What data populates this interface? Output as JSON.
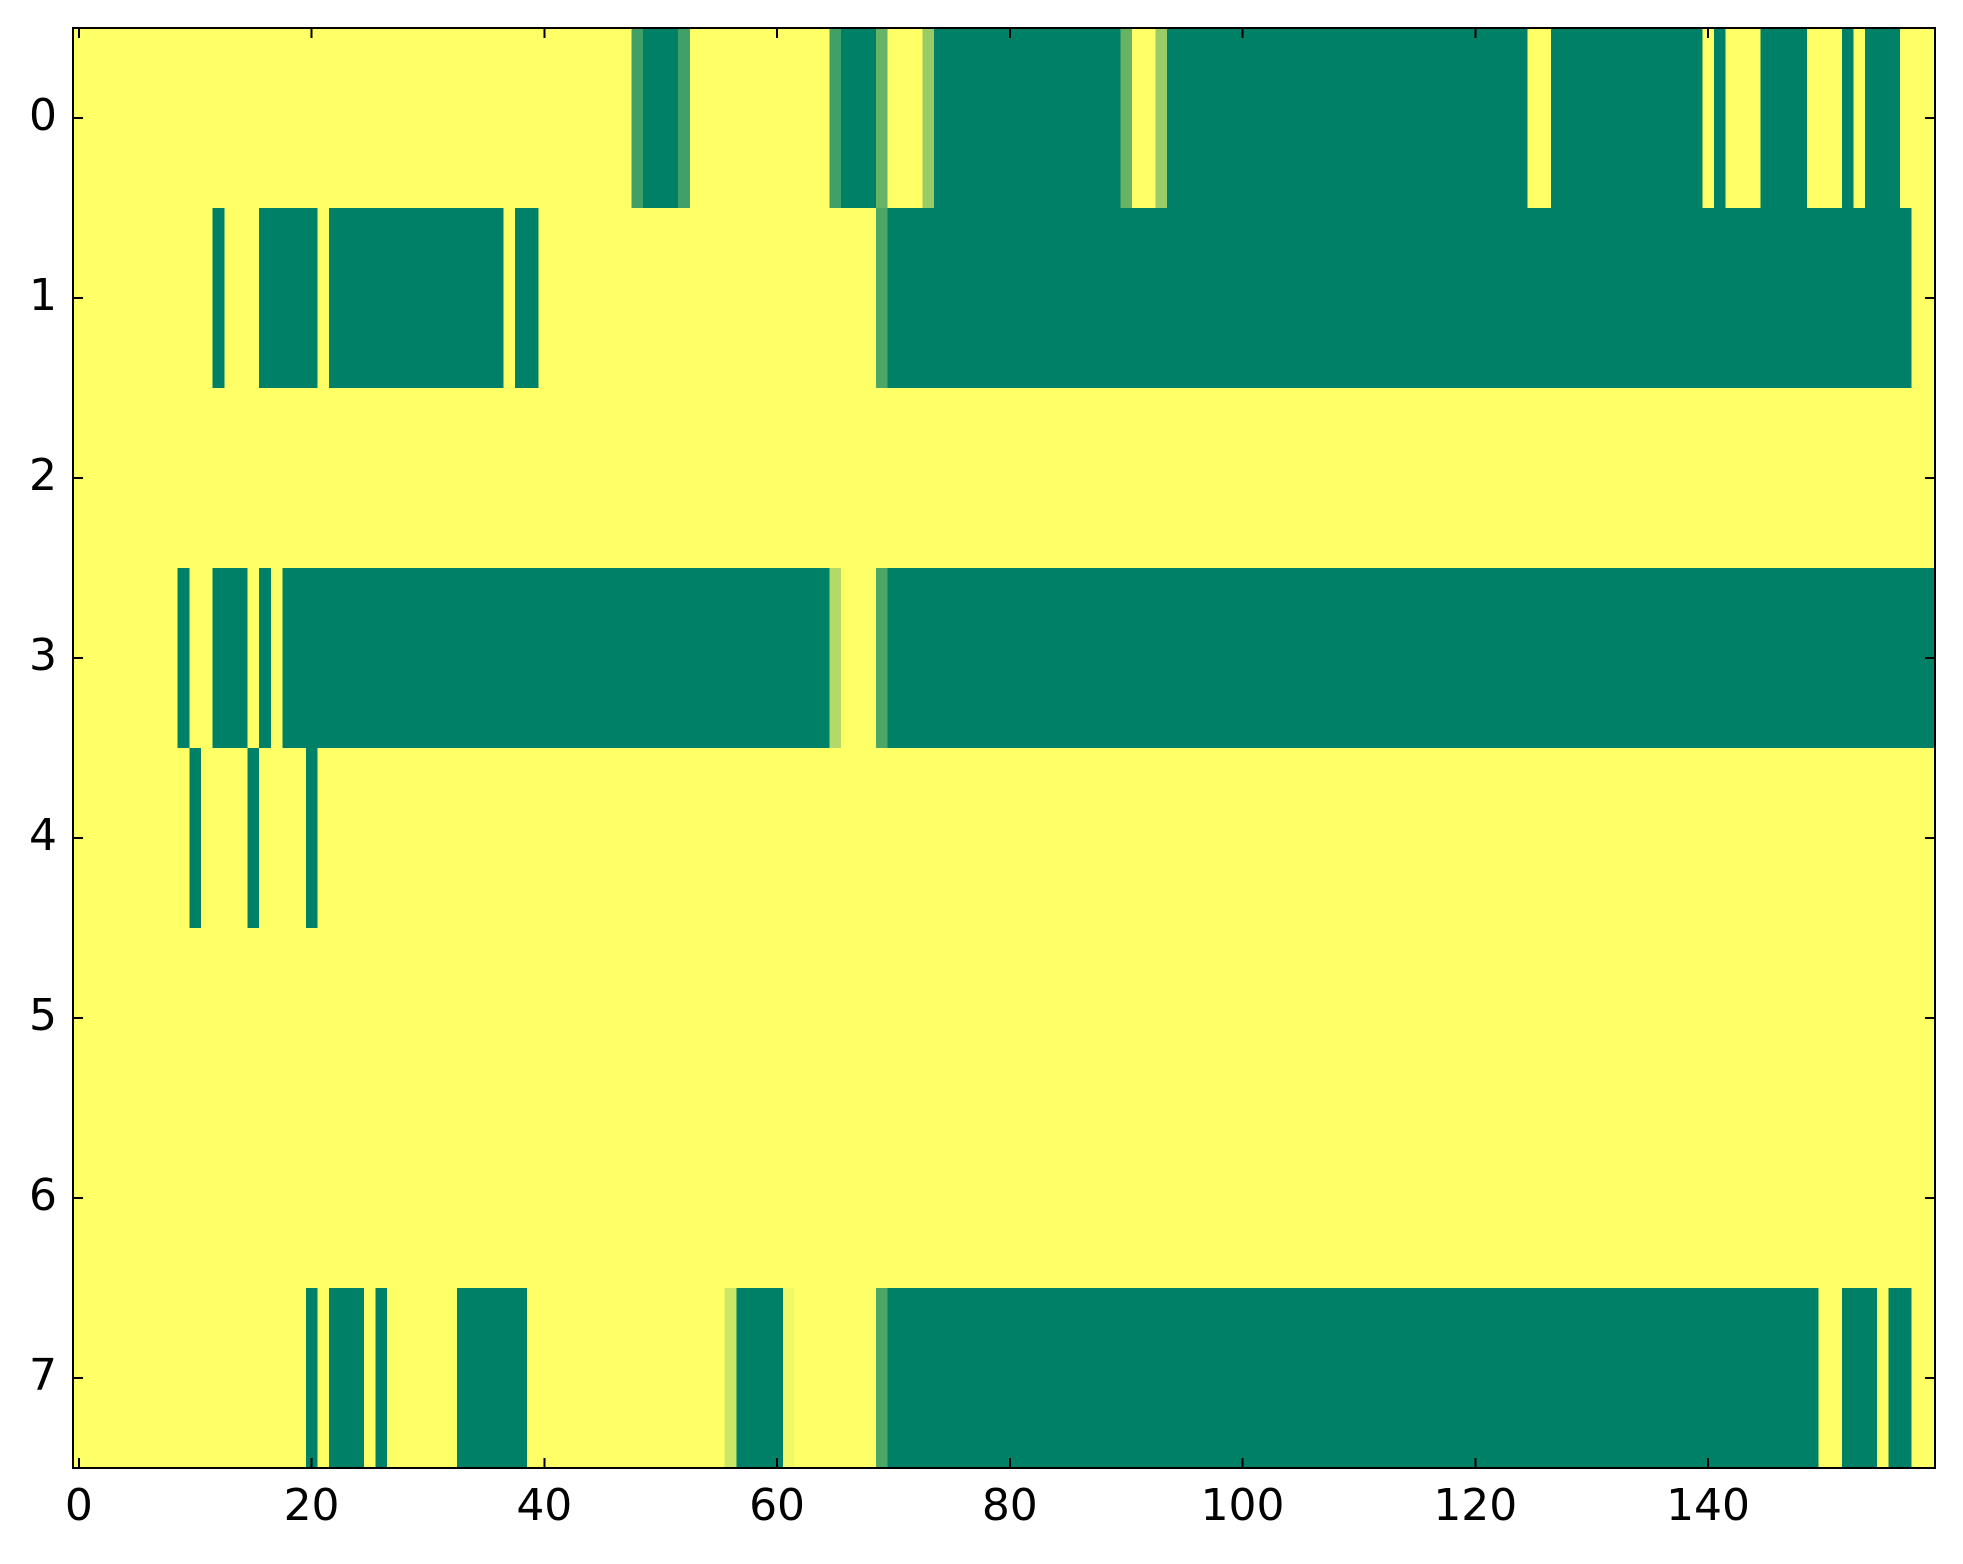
{
  "chart_data": {
    "type": "heatmap",
    "colors": [
      "#ffff66",
      "#008066"
    ],
    "xlim": [
      -0.5,
      159.5
    ],
    "ylim": [
      7.5,
      -0.5
    ],
    "xticks": [
      0,
      20,
      40,
      60,
      80,
      100,
      120,
      140
    ],
    "yticks": [
      0,
      1,
      2,
      3,
      4,
      5,
      6,
      7
    ],
    "z": [
      [
        0,
        0,
        0,
        0,
        0,
        0,
        0,
        0,
        0,
        0,
        0,
        0,
        0,
        0,
        0,
        0,
        0,
        0,
        0,
        0,
        0,
        0,
        0,
        0,
        0,
        0,
        0,
        0,
        0,
        0,
        0,
        0,
        0,
        0,
        0,
        0,
        0,
        0,
        0,
        0,
        0,
        0,
        0,
        0,
        0,
        0,
        0,
        0,
        0.75,
        1,
        1,
        1,
        0.75,
        0,
        0,
        0,
        0,
        0,
        0,
        0,
        0,
        0,
        0,
        0,
        0,
        0.75,
        1,
        1,
        1,
        0.6,
        0,
        0,
        0,
        0.4,
        1,
        1,
        1,
        1,
        1,
        1,
        1,
        1,
        1,
        1,
        1,
        1,
        1,
        1,
        1,
        1,
        0.6,
        0,
        0,
        0.4,
        1,
        1,
        1,
        1,
        1,
        1,
        1,
        1,
        1,
        1,
        1,
        1,
        1,
        1,
        1,
        1,
        1,
        1,
        1,
        1,
        1,
        1,
        1,
        1,
        1,
        1,
        1,
        1,
        1,
        1,
        1,
        0,
        0,
        1,
        1,
        1,
        1,
        1,
        1,
        1,
        1,
        1,
        1,
        1,
        1,
        1,
        0,
        1,
        0,
        0,
        0,
        1,
        1,
        1,
        1,
        0,
        0,
        0,
        1,
        0,
        1,
        1,
        1,
        0,
        0,
        0
      ],
      [
        0,
        0,
        0,
        0,
        0,
        0,
        0,
        0,
        0,
        0,
        0,
        0,
        1,
        0,
        0,
        0,
        1,
        1,
        1,
        1,
        1,
        0,
        1,
        1,
        1,
        1,
        1,
        1,
        1,
        1,
        1,
        1,
        1,
        1,
        1,
        1,
        1,
        0,
        1,
        1,
        0,
        0,
        0,
        0,
        0,
        0,
        0,
        0,
        0,
        0,
        0,
        0,
        0,
        0,
        0,
        0,
        0,
        0,
        0,
        0,
        0,
        0,
        0,
        0,
        0,
        0,
        0,
        0,
        0,
        0.7,
        1,
        1,
        1,
        1,
        1,
        1,
        1,
        1,
        1,
        1,
        1,
        1,
        1,
        1,
        1,
        1,
        1,
        1,
        1,
        1,
        1,
        1,
        1,
        1,
        1,
        1,
        1,
        1,
        1,
        1,
        1,
        1,
        1,
        1,
        1,
        1,
        1,
        1,
        1,
        1,
        1,
        1,
        1,
        1,
        1,
        1,
        1,
        1,
        1,
        1,
        1,
        1,
        1,
        1,
        1,
        1,
        1,
        1,
        1,
        1,
        1,
        1,
        1,
        1,
        1,
        1,
        1,
        1,
        1,
        1,
        1,
        1,
        1,
        1,
        1,
        1,
        1,
        1,
        1,
        1,
        1,
        1,
        1,
        1,
        1,
        1,
        1,
        1,
        0,
        0
      ],
      [
        0,
        0,
        0,
        0,
        0,
        0,
        0,
        0,
        0,
        0,
        0,
        0,
        0,
        0,
        0,
        0,
        0,
        0,
        0,
        0,
        0,
        0,
        0,
        0,
        0,
        0,
        0,
        0,
        0,
        0,
        0,
        0,
        0,
        0,
        0,
        0,
        0,
        0,
        0,
        0,
        0,
        0,
        0,
        0,
        0,
        0,
        0,
        0,
        0,
        0,
        0,
        0,
        0,
        0,
        0,
        0,
        0,
        0,
        0,
        0,
        0,
        0,
        0,
        0,
        0,
        0,
        0,
        0,
        0,
        0,
        0,
        0,
        0,
        0,
        0,
        0,
        0,
        0,
        0,
        0,
        0,
        0,
        0,
        0,
        0,
        0,
        0,
        0,
        0,
        0,
        0,
        0,
        0,
        0,
        0,
        0,
        0,
        0,
        0,
        0,
        0,
        0,
        0,
        0,
        0,
        0,
        0,
        0,
        0,
        0,
        0,
        0,
        0,
        0,
        0,
        0,
        0,
        0,
        0,
        0,
        0,
        0,
        0,
        0,
        0,
        0,
        0,
        0,
        0,
        0,
        0,
        0,
        0,
        0,
        0,
        0,
        0,
        0,
        0,
        0,
        0,
        0,
        0,
        0,
        0,
        0,
        0,
        0,
        0,
        0,
        0,
        0,
        0,
        0,
        0,
        0,
        0,
        0,
        0,
        0
      ],
      [
        0,
        0,
        0,
        0,
        0,
        0,
        0,
        0,
        0,
        1,
        0,
        0,
        1,
        1,
        1,
        0,
        1,
        0,
        1,
        1,
        1,
        1,
        1,
        1,
        1,
        1,
        1,
        1,
        1,
        1,
        1,
        1,
        1,
        1,
        1,
        1,
        1,
        1,
        1,
        1,
        1,
        1,
        1,
        1,
        1,
        1,
        1,
        1,
        1,
        1,
        1,
        1,
        1,
        1,
        1,
        1,
        1,
        1,
        1,
        1,
        1,
        1,
        1,
        1,
        1,
        0.3,
        0,
        0,
        0,
        0.7,
        1,
        1,
        1,
        1,
        1,
        1,
        1,
        1,
        1,
        1,
        1,
        1,
        1,
        1,
        1,
        1,
        1,
        1,
        1,
        1,
        1,
        1,
        1,
        1,
        1,
        1,
        1,
        1,
        1,
        1,
        1,
        1,
        1,
        1,
        1,
        1,
        1,
        1,
        1,
        1,
        1,
        1,
        1,
        1,
        1,
        1,
        1,
        1,
        1,
        1,
        1,
        1,
        1,
        1,
        1,
        1,
        1,
        1,
        1,
        1,
        1,
        1,
        1,
        1,
        1,
        1,
        1,
        1,
        1,
        1,
        1,
        1,
        1,
        1,
        1,
        1,
        1,
        1,
        1,
        1,
        1,
        1,
        1,
        1,
        1,
        1,
        1,
        1,
        1,
        1
      ],
      [
        0,
        0,
        0,
        0,
        0,
        0,
        0,
        0,
        0,
        0,
        1,
        0,
        0,
        0,
        0,
        1,
        0,
        0,
        0,
        0,
        1,
        0,
        0,
        0,
        0,
        0,
        0,
        0,
        0,
        0,
        0,
        0,
        0,
        0,
        0,
        0,
        0,
        0,
        0,
        0,
        0,
        0,
        0,
        0,
        0,
        0,
        0,
        0,
        0,
        0,
        0,
        0,
        0,
        0,
        0,
        0,
        0,
        0,
        0,
        0,
        0,
        0,
        0,
        0,
        0,
        0,
        0,
        0,
        0,
        0,
        0,
        0,
        0,
        0,
        0,
        0,
        0,
        0,
        0,
        0,
        0,
        0,
        0,
        0,
        0,
        0,
        0,
        0,
        0,
        0,
        0,
        0,
        0,
        0,
        0,
        0,
        0,
        0,
        0,
        0,
        0,
        0,
        0,
        0,
        0,
        0,
        0,
        0,
        0,
        0,
        0,
        0,
        0,
        0,
        0,
        0,
        0,
        0,
        0,
        0,
        0,
        0,
        0,
        0,
        0,
        0,
        0,
        0,
        0,
        0,
        0,
        0,
        0,
        0,
        0,
        0,
        0,
        0,
        0,
        0,
        0,
        0,
        0,
        0,
        0,
        0,
        0,
        0,
        0,
        0,
        0,
        0,
        0,
        0,
        0,
        0,
        0,
        0,
        0,
        0
      ],
      [
        0,
        0,
        0,
        0,
        0,
        0,
        0,
        0,
        0,
        0,
        0,
        0,
        0,
        0,
        0,
        0,
        0,
        0,
        0,
        0,
        0,
        0,
        0,
        0,
        0,
        0,
        0,
        0,
        0,
        0,
        0,
        0,
        0,
        0,
        0,
        0,
        0,
        0,
        0,
        0,
        0,
        0,
        0,
        0,
        0,
        0,
        0,
        0,
        0,
        0,
        0,
        0,
        0,
        0,
        0,
        0,
        0,
        0,
        0,
        0,
        0,
        0,
        0,
        0,
        0,
        0,
        0,
        0,
        0,
        0,
        0,
        0,
        0,
        0,
        0,
        0,
        0,
        0,
        0,
        0,
        0,
        0,
        0,
        0,
        0,
        0,
        0,
        0,
        0,
        0,
        0,
        0,
        0,
        0,
        0,
        0,
        0,
        0,
        0,
        0,
        0,
        0,
        0,
        0,
        0,
        0,
        0,
        0,
        0,
        0,
        0,
        0,
        0,
        0,
        0,
        0,
        0,
        0,
        0,
        0,
        0,
        0,
        0,
        0,
        0,
        0,
        0,
        0,
        0,
        0,
        0,
        0,
        0,
        0,
        0,
        0,
        0,
        0,
        0,
        0,
        0,
        0,
        0,
        0,
        0,
        0,
        0,
        0,
        0,
        0,
        0,
        0,
        0,
        0,
        0,
        0,
        0,
        0,
        0,
        0
      ],
      [
        0,
        0,
        0,
        0,
        0,
        0,
        0,
        0,
        0,
        0,
        0,
        0,
        0,
        0,
        0,
        0,
        0,
        0,
        0,
        0,
        0,
        0,
        0,
        0,
        0,
        0,
        0,
        0,
        0,
        0,
        0,
        0,
        0,
        0,
        0,
        0,
        0,
        0,
        0,
        0,
        0,
        0,
        0,
        0,
        0,
        0,
        0,
        0,
        0,
        0,
        0,
        0,
        0,
        0,
        0,
        0,
        0,
        0,
        0,
        0,
        0,
        0,
        0,
        0,
        0,
        0,
        0,
        0,
        0,
        0,
        0,
        0,
        0,
        0,
        0,
        0,
        0,
        0,
        0,
        0,
        0,
        0,
        0,
        0,
        0,
        0,
        0,
        0,
        0,
        0,
        0,
        0,
        0,
        0,
        0,
        0,
        0,
        0,
        0,
        0,
        0,
        0,
        0,
        0,
        0,
        0,
        0,
        0,
        0,
        0,
        0,
        0,
        0,
        0,
        0,
        0,
        0,
        0,
        0,
        0,
        0,
        0,
        0,
        0,
        0,
        0,
        0,
        0,
        0,
        0,
        0,
        0,
        0,
        0,
        0,
        0,
        0,
        0,
        0,
        0,
        0,
        0,
        0,
        0,
        0,
        0,
        0,
        0,
        0,
        0,
        0,
        0,
        0,
        0,
        0,
        0,
        0,
        0,
        0,
        0
      ],
      [
        0,
        0,
        0,
        0,
        0,
        0,
        0,
        0,
        0,
        0,
        0,
        0,
        0,
        0,
        0,
        0,
        0,
        0,
        0,
        0,
        1,
        0,
        1,
        1,
        1,
        0,
        1,
        0,
        0,
        0,
        0,
        0,
        0,
        1,
        1,
        1,
        1,
        1,
        1,
        0,
        0,
        0,
        0,
        0,
        0,
        0,
        0,
        0,
        0,
        0,
        0,
        0,
        0,
        0,
        0,
        0,
        0.2,
        1,
        1,
        1,
        1,
        0.05,
        0,
        0,
        0,
        0,
        0,
        0,
        0,
        0.7,
        1,
        1,
        1,
        1,
        1,
        1,
        1,
        1,
        1,
        1,
        1,
        1,
        1,
        1,
        1,
        1,
        1,
        1,
        1,
        1,
        1,
        1,
        1,
        1,
        1,
        1,
        1,
        1,
        1,
        1,
        1,
        1,
        1,
        1,
        1,
        1,
        1,
        1,
        1,
        1,
        1,
        1,
        1,
        1,
        1,
        1,
        1,
        1,
        1,
        1,
        1,
        1,
        1,
        1,
        1,
        1,
        1,
        1,
        1,
        1,
        1,
        1,
        1,
        1,
        1,
        1,
        1,
        1,
        1,
        1,
        1,
        1,
        1,
        1,
        1,
        1,
        1,
        1,
        1,
        1,
        0,
        0,
        1,
        1,
        1,
        0,
        1,
        1,
        0,
        0
      ]
    ]
  }
}
